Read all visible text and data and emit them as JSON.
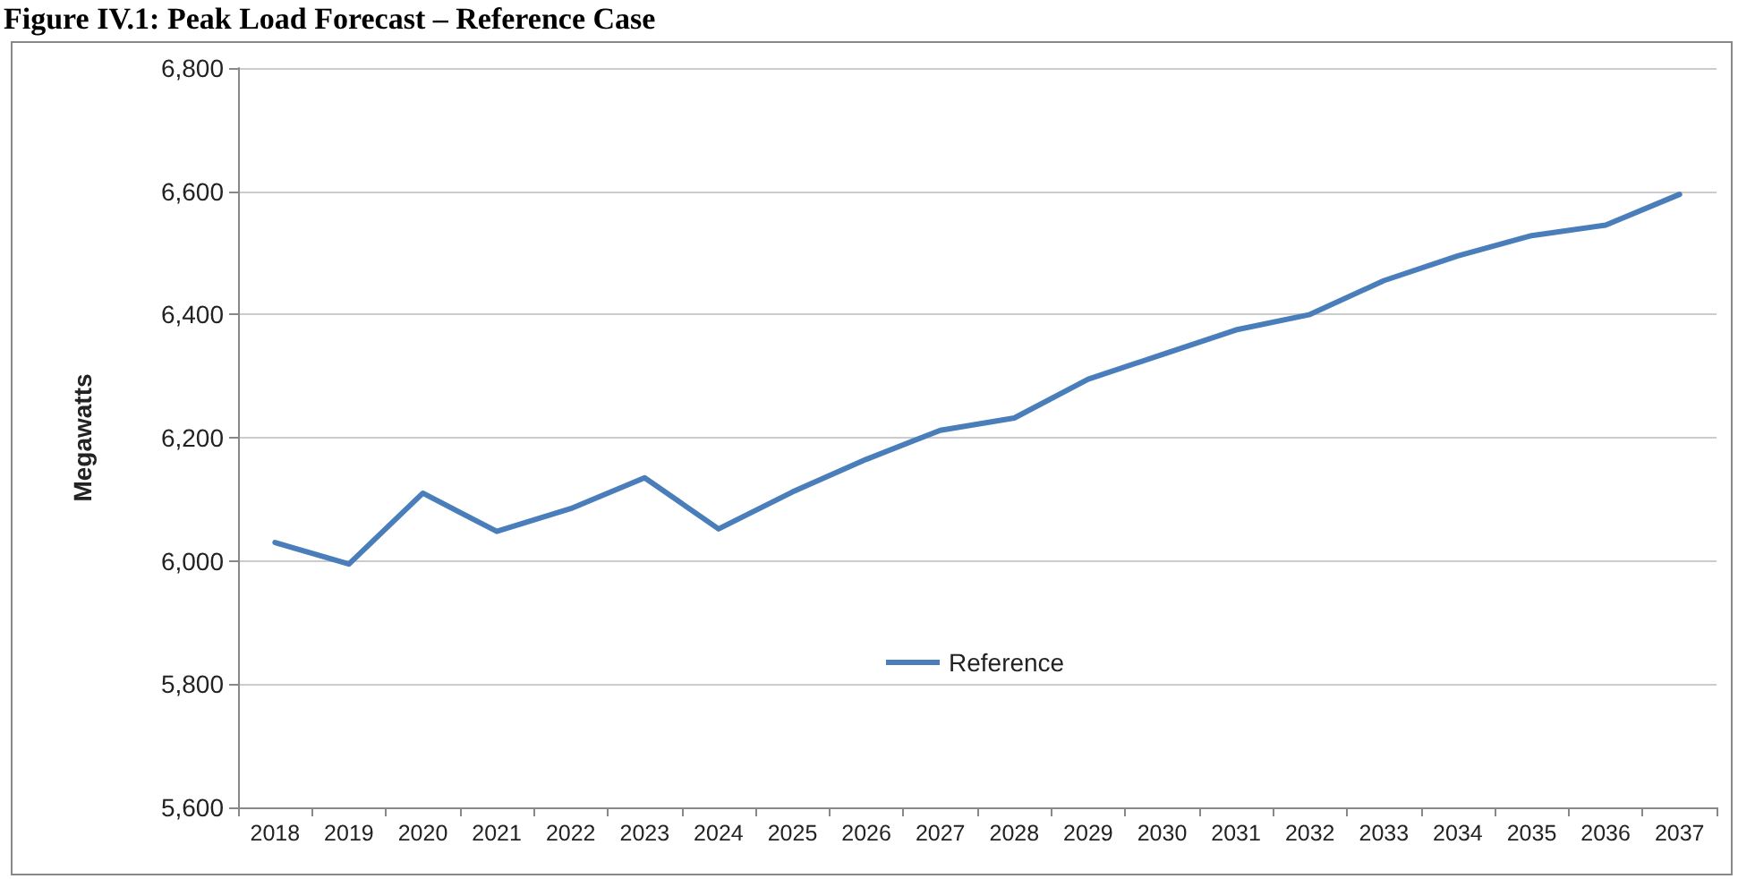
{
  "chart_data": {
    "type": "line",
    "title": "Figure IV.1: Peak Load Forecast – Reference Case",
    "ylabel": "Megawatts",
    "categories": [
      "2018",
      "2019",
      "2020",
      "2021",
      "2022",
      "2023",
      "2024",
      "2025",
      "2026",
      "2027",
      "2028",
      "2029",
      "2030",
      "2031",
      "2032",
      "2033",
      "2034",
      "2035",
      "2036",
      "2037"
    ],
    "series": [
      {
        "name": "Reference",
        "color": "#4a7ebb",
        "values": [
          6030,
          5995,
          6110,
          6048,
          6085,
          6135,
          6052,
          6112,
          6165,
          6212,
          6232,
          6295,
          6335,
          6375,
          6400,
          6455,
          6495,
          6528,
          6545,
          6595
        ]
      }
    ],
    "ylim": [
      5600,
      6800
    ],
    "yticks": [
      {
        "value": 5600,
        "label": "5,600"
      },
      {
        "value": 5800,
        "label": "5,800"
      },
      {
        "value": 6000,
        "label": "6,000"
      },
      {
        "value": 6200,
        "label": "6,200"
      },
      {
        "value": 6400,
        "label": "6,400"
      },
      {
        "value": 6600,
        "label": "6,600"
      },
      {
        "value": 6800,
        "label": "6,800"
      }
    ],
    "grid": "y",
    "legend": "bottom",
    "marker": "none",
    "line_style": "solid"
  }
}
